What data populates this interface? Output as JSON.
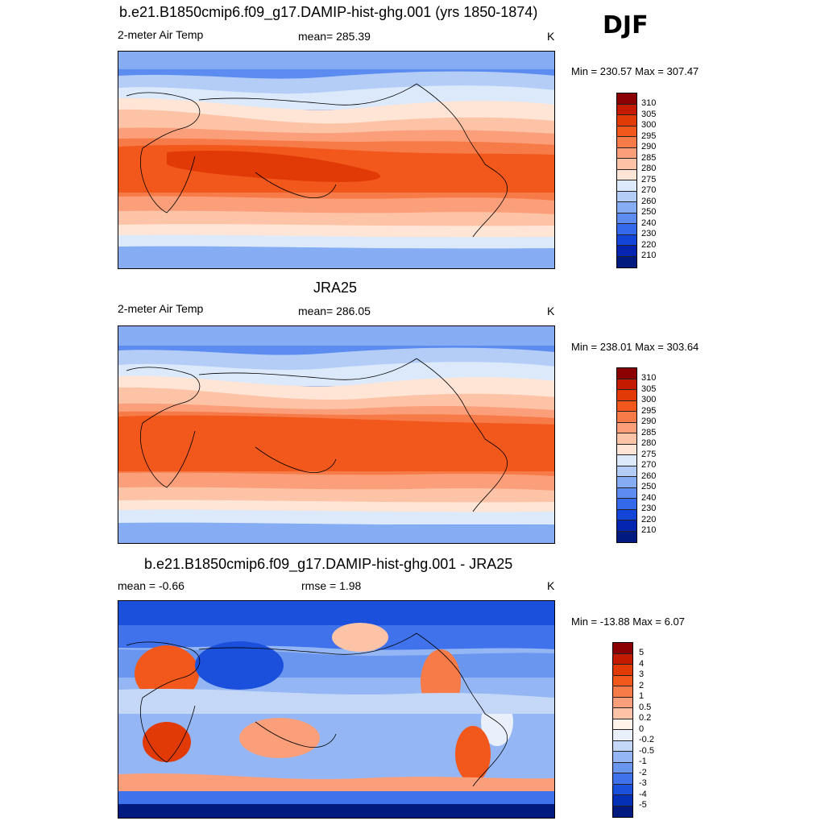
{
  "season": "DJF",
  "panels": [
    {
      "title": "b.e21.B1850cmip6.f09_g17.DAMIP-hist-ghg.001 (yrs 1850-1874)",
      "left_label": "2-meter Air Temp",
      "center_label": "mean= 285.39",
      "unit": "K",
      "range_text": "Min = 230.57 Max = 307.47"
    },
    {
      "title": "JRA25",
      "left_label": "2-meter Air Temp",
      "center_label": "mean= 286.05",
      "unit": "K",
      "range_text": "Min = 238.01 Max = 303.64"
    },
    {
      "title": "b.e21.B1850cmip6.f09_g17.DAMIP-hist-ghg.001 - JRA25",
      "left_label": "mean =  -0.66",
      "center_label": "rmse =   1.98",
      "unit": "K",
      "range_text": "Min = -13.88 Max =   6.07"
    }
  ],
  "temp_colorbar": {
    "labels": [
      "310",
      "305",
      "300",
      "295",
      "290",
      "285",
      "280",
      "275",
      "270",
      "260",
      "250",
      "240",
      "230",
      "220",
      "210"
    ],
    "colors": [
      "#8b0000",
      "#c41b00",
      "#e23a06",
      "#f2581c",
      "#f77b48",
      "#fb9f7a",
      "#fdc3a7",
      "#fee5d6",
      "#dbe9fb",
      "#b3cdf7",
      "#86adf4",
      "#5c8cf0",
      "#3469ec",
      "#1346d8",
      "#0425b0",
      "#001a80"
    ]
  },
  "diff_colorbar": {
    "labels": [
      "5",
      "4",
      "3",
      "2",
      "1",
      "0.5",
      "0.2",
      "0",
      "-0.2",
      "-0.5",
      "-1",
      "-2",
      "-3",
      "-4",
      "-5"
    ],
    "colors": [
      "#8b0000",
      "#c41b00",
      "#e23a06",
      "#f2581c",
      "#f77b48",
      "#fb9f7a",
      "#fdc3a7",
      "#fff3ea",
      "#e9f0fb",
      "#c4d7f7",
      "#94b6f4",
      "#6a96f0",
      "#4072ec",
      "#1a50dc",
      "#0430b8",
      "#001a80"
    ]
  }
}
